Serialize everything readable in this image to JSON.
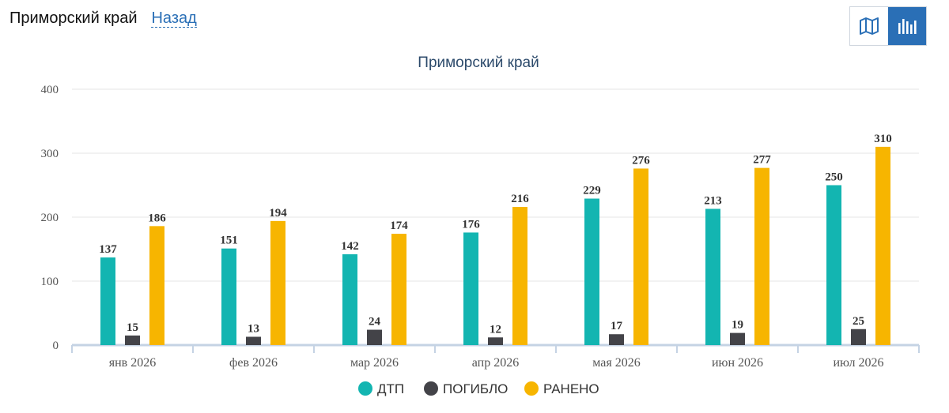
{
  "header": {
    "region": "Приморский край",
    "back_label": "Назад"
  },
  "toolbar": {
    "map_icon": "map-icon",
    "chart_icon": "bar-chart-icon",
    "active_view": "chart"
  },
  "colors": {
    "dtp": "#13b5b1",
    "pogiblo": "#434348",
    "raneno": "#f7b500",
    "accent": "#2a6fb6"
  },
  "chart_data": {
    "type": "bar",
    "title": "Приморский край",
    "categories": [
      "янв 2026",
      "фев 2026",
      "мар 2026",
      "апр 2026",
      "мая 2026",
      "июн 2026",
      "июл 2026"
    ],
    "series": [
      {
        "name": "ДТП",
        "values": [
          137,
          151,
          142,
          176,
          229,
          213,
          250
        ]
      },
      {
        "name": "ПОГИБЛО",
        "values": [
          15,
          13,
          24,
          12,
          17,
          19,
          25
        ]
      },
      {
        "name": "РАНЕНО",
        "values": [
          186,
          194,
          174,
          216,
          276,
          277,
          310
        ]
      }
    ],
    "ylim": [
      0,
      400
    ],
    "yticks": [
      0,
      100,
      200,
      300,
      400
    ],
    "grid": true,
    "legend": "bottom-center",
    "data_labels": true
  }
}
